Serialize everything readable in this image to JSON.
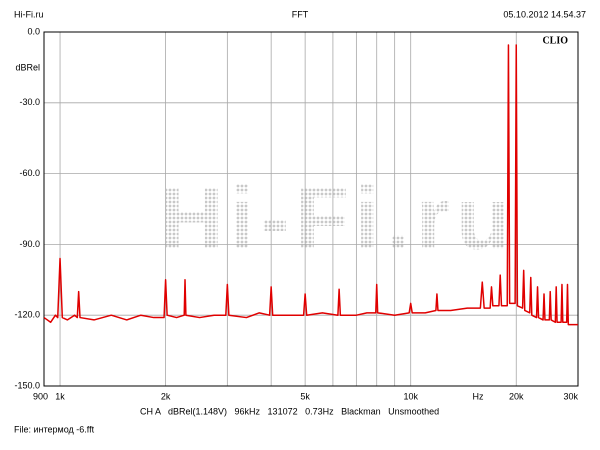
{
  "chart_data": {
    "type": "line",
    "header_left": "Hi-Fi.ru",
    "title": "FFT",
    "header_right": "05.10.2012 14.54.37",
    "brand": "CLIO",
    "watermark": "Hi-Fi.ru",
    "ylabel": "dBRel",
    "xlabel": "Hz",
    "info": "CH A   dBRel(1.148V)   96kHz   131072   0.73Hz   Blackman   Unsmoothed",
    "file": "File: интермод -6.fft",
    "xscale": "log",
    "grid": true,
    "xlim": [
      900,
      30000
    ],
    "ylim": [
      -150,
      0
    ],
    "xticks": [
      900,
      {
        "value": 1000,
        "label": "1k"
      },
      {
        "value": 2000,
        "label": "2k"
      },
      {
        "value": 5000,
        "label": "5k"
      },
      {
        "value": 10000,
        "label": "10k"
      },
      {
        "value": 20000,
        "label": "20k"
      },
      {
        "value": 30000,
        "label": "30k"
      }
    ],
    "xminor": [
      3000,
      4000,
      6000,
      7000,
      8000,
      9000
    ],
    "yticks": [
      {
        "value": 0,
        "label": "0.0"
      },
      {
        "value": -30,
        "label": "-30.0"
      },
      {
        "value": -60,
        "label": "-60.0"
      },
      {
        "value": -90,
        "label": "-90.0"
      },
      {
        "value": -120,
        "label": "-120.0"
      },
      {
        "value": -150,
        "label": "-150.0"
      }
    ],
    "x": [
      900,
      940,
      970,
      985,
      1000,
      1015,
      1050,
      1100,
      1120,
      1130,
      1140,
      1250,
      1400,
      1550,
      1700,
      1850,
      1980,
      2000,
      2020,
      2150,
      2260,
      2272,
      2285,
      2500,
      2750,
      2970,
      3000,
      3030,
      3400,
      3700,
      3960,
      4000,
      4040,
      4500,
      4950,
      5000,
      5050,
      5600,
      6200,
      6250,
      6300,
      7000,
      7500,
      7950,
      8000,
      8050,
      9000,
      9900,
      10000,
      10100,
      11000,
      11800,
      11880,
      11960,
      13000,
      14500,
      15800,
      16000,
      16200,
      16850,
      17000,
      17150,
      17850,
      18000,
      18150,
      18850,
      19000,
      19150,
      19850,
      20000,
      20150,
      20850,
      21000,
      21150,
      21850,
      22000,
      22150,
      22850,
      23000,
      23150,
      23850,
      24000,
      24150,
      24850,
      25000,
      25150,
      25850,
      26000,
      26150,
      26850,
      27000,
      27150,
      27850,
      28000,
      28150,
      30000
    ],
    "series": [
      {
        "color": "#e00000",
        "values": [
          -121,
          -123,
          -120,
          -121,
          -96,
          -121,
          -122,
          -120,
          -121,
          -110,
          -121,
          -122,
          -120,
          -122,
          -120,
          -121,
          -121,
          -105,
          -120,
          -121,
          -120,
          -105,
          -120,
          -121,
          -120,
          -120,
          -107,
          -120,
          -121,
          -119,
          -120,
          -108,
          -120,
          -120,
          -120,
          -111,
          -120,
          -119,
          -120,
          -109,
          -120,
          -120,
          -119,
          -119,
          -107,
          -119,
          -120,
          -119,
          -115,
          -119,
          -119,
          -118,
          -111,
          -118,
          -118,
          -117,
          -117,
          -106,
          -117,
          -117,
          -108,
          -116,
          -116,
          -103,
          -116,
          -116,
          -5.5,
          -115,
          -115,
          -5.5,
          -116,
          -117,
          -101,
          -118,
          -119,
          -104,
          -120,
          -121,
          -108,
          -121,
          -122,
          -111,
          -122,
          -122,
          -110,
          -122,
          -123,
          -108,
          -123,
          -123,
          -107,
          -123,
          -123,
          -107,
          -124,
          -124
        ]
      }
    ]
  }
}
